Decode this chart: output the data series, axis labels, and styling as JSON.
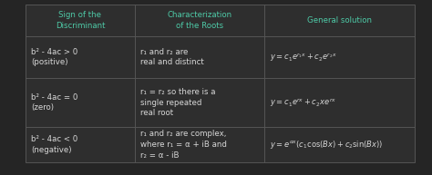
{
  "bg_color": "#252525",
  "table_bg": "#2e2e2e",
  "border_color": "#555555",
  "header_text_color": "#4ecba8",
  "cell_text_color": "#d8d8d8",
  "col_headers": [
    "Sign of the\nDiscriminant",
    "Characterization\nof the Roots",
    "General solution"
  ],
  "rows": [
    {
      "col0": "b² - 4ac > 0\n(positive)",
      "col1": "r₁ and r₂ are\nreal and distinct",
      "col2": "y = c₁e^{r₁x} + c₂e^{r₂x}"
    },
    {
      "col0": "b² - 4ac = 0\n(zero)",
      "col1": "r₁ = r₂ so there is a\nsingle repeated\nreal root",
      "col2": "y = c₁e^{rx} + c₂xe^{rx}"
    },
    {
      "col0": "b² - 4ac < 0\n(negative)",
      "col1": "r₁ and r₂ are complex,\nwhere r₁ = α + iB and\nr₂ = α - iB",
      "col2": "y = e^{αx} (c₁ cos (Bx) + c₂ sin (Bx))"
    }
  ],
  "col2_rows_math": [
    "$y = c_1 e^{r_1 x} + c_2 e^{r_2 x}$",
    "$y = c_1 e^{rx} + c_2 x e^{rx}$",
    "$y = e^{\\alpha x} (c_1 \\cos(Bx) + c_2 \\sin(Bx))$"
  ]
}
